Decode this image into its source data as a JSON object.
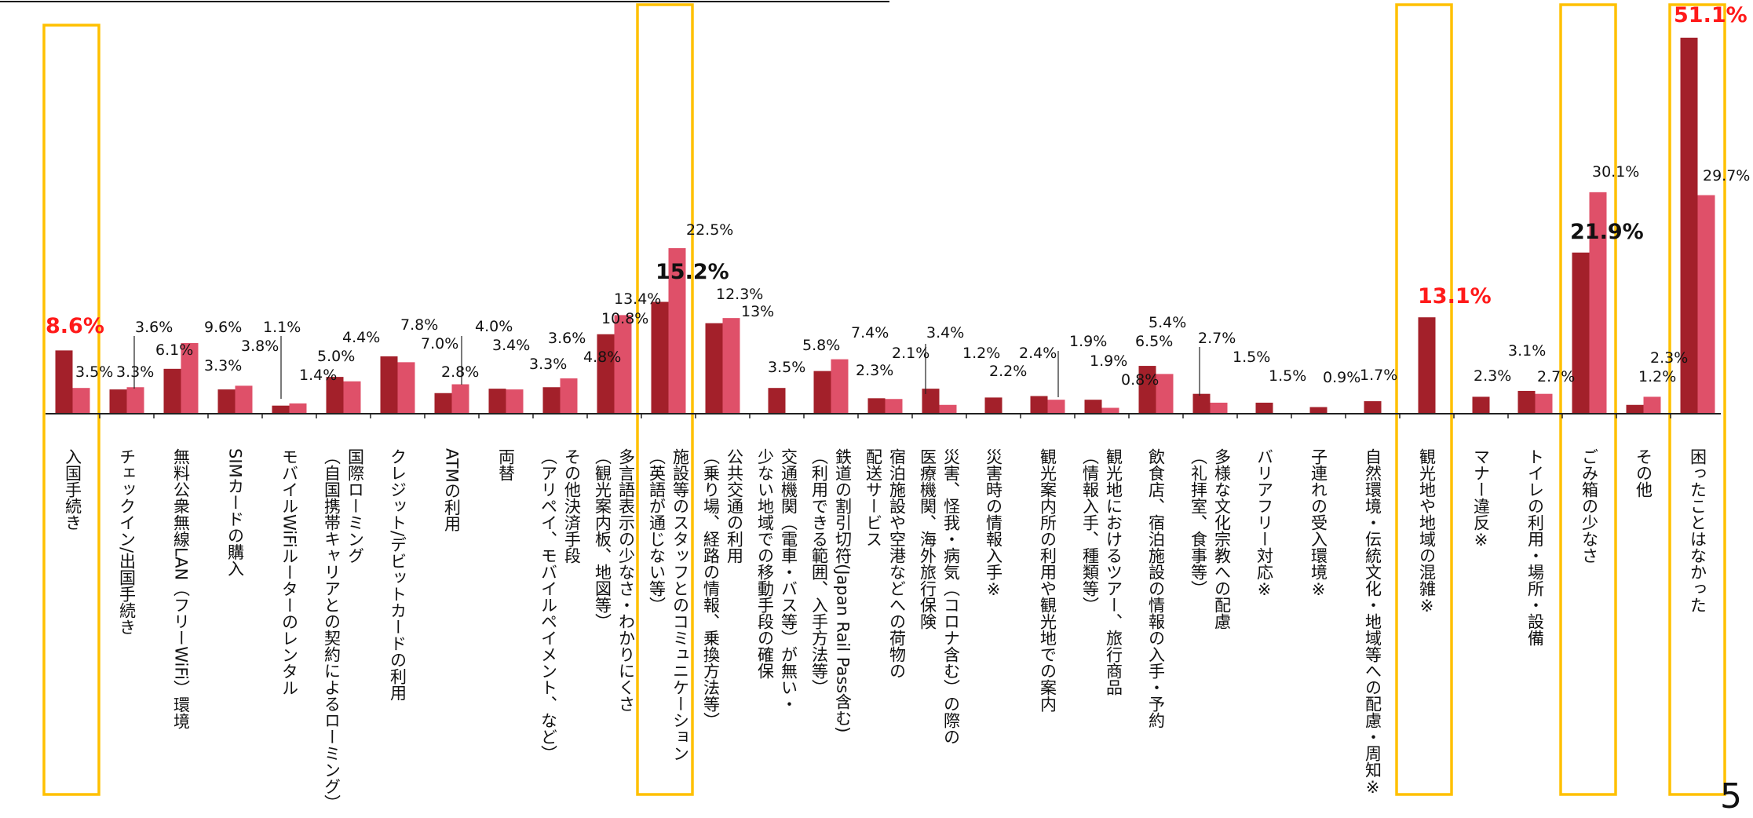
{
  "chart_data": {
    "type": "bar",
    "title": "",
    "xlabel": "",
    "ylabel": "",
    "ylim": [
      0,
      51.1
    ],
    "grid": false,
    "legend": "none",
    "series_colors": [
      "#a3202a",
      "#df5069"
    ],
    "highlight_color": "#ffc000",
    "categories": [
      {
        "label": "入国手続き",
        "values": [
          8.6,
          3.5
        ],
        "labels": [
          "8.6%",
          "3.5%"
        ],
        "highlight": true
      },
      {
        "label": "チェックイン/出国手続き",
        "values": [
          3.3,
          3.6
        ],
        "labels": [
          "3.3%",
          "3.6%"
        ]
      },
      {
        "label": "無料公衆無線LAN（フリーWiFi）環境",
        "values": [
          6.1,
          9.6,
          3.3
        ],
        "labels": [
          "6.1%",
          "9.6%",
          "3.3%"
        ]
      },
      {
        "label": "SIMカードの購入",
        "values": [
          3.3,
          3.8
        ],
        "labels": [
          "",
          "3.8%"
        ]
      },
      {
        "label": "モバイルWiFiルーターのレンタル",
        "values": [
          1.1,
          1.4
        ],
        "labels": [
          "1.1%",
          "1.4%"
        ]
      },
      {
        "label": "国際ローミング\n（自国携帯キャリアとの契約によるローミング）",
        "values": [
          5.0,
          4.4
        ],
        "labels": [
          "5.0%",
          "4.4%"
        ]
      },
      {
        "label": "クレジット/デビットカードの利用",
        "values": [
          7.8,
          7.0
        ],
        "labels": [
          "7.8%",
          "7.0%"
        ]
      },
      {
        "label": "ATMの利用",
        "values": [
          2.8,
          4.0
        ],
        "labels": [
          "2.8%",
          "4.0%"
        ]
      },
      {
        "label": "両替",
        "values": [
          3.4,
          3.3
        ],
        "labels": [
          "3.4%",
          "3.3%"
        ]
      },
      {
        "label": "その他決済手段\n（アリペイ、モバイルペイメント、など）",
        "values": [
          3.6,
          4.8
        ],
        "labels": [
          "3.6%",
          "4.8%"
        ]
      },
      {
        "label": "多言語表示の少なさ・わかりにくさ\n（観光案内板、地図等）",
        "values": [
          10.8,
          13.4
        ],
        "labels": [
          "10.8%",
          "13.4%"
        ]
      },
      {
        "label": "施設等のスタッフとのコミュニケーション\n（英語が通じない等）",
        "values": [
          15.2,
          22.5
        ],
        "labels": [
          "15.2%",
          "22.5%"
        ],
        "highlight": true
      },
      {
        "label": "公共交通の利用\n（乗り場、経路の情報、乗換方法等）",
        "values": [
          12.3,
          13
        ],
        "labels": [
          "12.3%",
          "13%"
        ]
      },
      {
        "label": "交通機関（電車・バス等）が無い・\n少ない地域での移動手段の確保",
        "values": [
          3.5
        ],
        "labels": [
          "3.5%"
        ]
      },
      {
        "label": "鉄道の割引切符(Japan Rail Pass含む)\n（利用できる範囲、入手方法等）",
        "values": [
          5.8,
          7.4,
          2.3
        ],
        "labels": [
          "5.8%",
          "7.4%",
          "2.3%"
        ]
      },
      {
        "label": "宿泊施設や空港などへの荷物の\n配送サービス",
        "values": [
          2.1,
          2.0
        ],
        "labels": [
          "2.1%",
          ""
        ]
      },
      {
        "label": "災害、怪我・病気（コロナ含む）の際の\n医療機関、海外旅行保険",
        "values": [
          3.4,
          1.2
        ],
        "labels": [
          "3.4%",
          "1.2%"
        ]
      },
      {
        "label": "災害時の情報入手※",
        "values": [
          2.2
        ],
        "labels": [
          "2.2%"
        ]
      },
      {
        "label": "観光案内所の利用や観光地での案内",
        "values": [
          2.4,
          1.9
        ],
        "labels": [
          "2.4%",
          "1.9%"
        ]
      },
      {
        "label": "観光地におけるツアー、旅行商品\n（情報入手、種類等）",
        "values": [
          1.9,
          0.8
        ],
        "labels": [
          "1.9%",
          "0.8%"
        ]
      },
      {
        "label": "飲食店、宿泊施設の情報の入手・予約",
        "values": [
          6.5,
          5.4
        ],
        "labels": [
          "6.5%",
          "5.4%"
        ]
      },
      {
        "label": "多様な文化宗教への配慮\n（礼拝室、食事等）",
        "values": [
          2.7,
          1.5
        ],
        "labels": [
          "2.7%",
          "1.5%"
        ]
      },
      {
        "label": "バリアフリー対応※",
        "values": [
          1.5
        ],
        "labels": [
          "1.5%"
        ]
      },
      {
        "label": "子連れの受入環境※",
        "values": [
          0.9
        ],
        "labels": [
          "0.9%"
        ]
      },
      {
        "label": "自然環境・伝統文化・地域等への配慮・周知※",
        "values": [
          1.7
        ],
        "labels": [
          "1.7%"
        ]
      },
      {
        "label": "観光地や地域の混雑※",
        "values": [
          13.1
        ],
        "labels": [
          "13.1%"
        ],
        "highlight": true
      },
      {
        "label": "マナー違反※",
        "values": [
          2.3
        ],
        "labels": [
          "2.3%"
        ]
      },
      {
        "label": "トイレの利用・場所・設備",
        "values": [
          3.1,
          2.7
        ],
        "labels": [
          "3.1%",
          "2.7%"
        ]
      },
      {
        "label": "ごみ箱の少なさ",
        "values": [
          21.9,
          30.1
        ],
        "labels": [
          "21.9%",
          "30.1%"
        ],
        "highlight": true
      },
      {
        "label": "その他",
        "values": [
          1.2,
          2.3
        ],
        "labels": [
          "1.2%",
          "2.3%"
        ]
      },
      {
        "label": "困ったことはなかった",
        "values": [
          51.1,
          29.7
        ],
        "labels": [
          "51.1%",
          "29.7%"
        ],
        "highlight": true
      }
    ]
  },
  "page_number": "5"
}
